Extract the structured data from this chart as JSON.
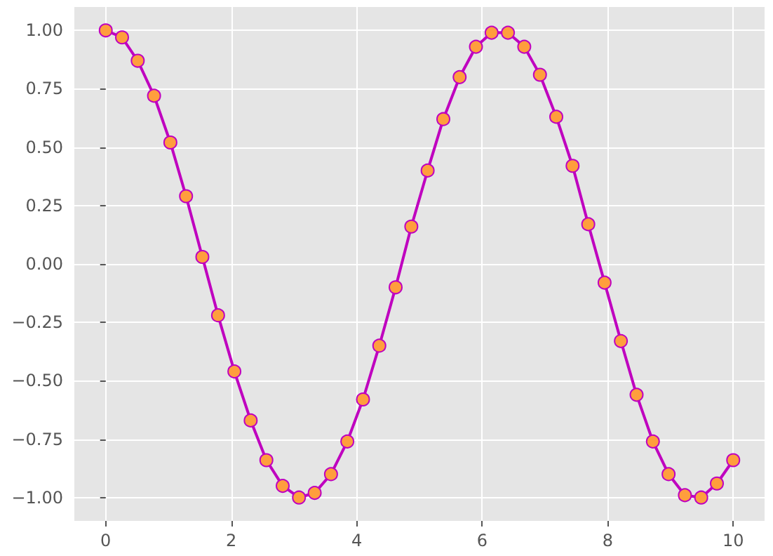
{
  "chart_data": {
    "type": "line",
    "marker": "circle",
    "line_style": "solid",
    "grid": true,
    "x": [
      0,
      0.26,
      0.51,
      0.77,
      1.03,
      1.28,
      1.54,
      1.79,
      2.05,
      2.31,
      2.56,
      2.82,
      3.08,
      3.33,
      3.59,
      3.85,
      4.1,
      4.36,
      4.62,
      4.87,
      5.13,
      5.38,
      5.64,
      5.9,
      6.15,
      6.41,
      6.67,
      6.92,
      7.18,
      7.44,
      7.69,
      7.95,
      8.21,
      8.46,
      8.72,
      8.97,
      9.23,
      9.49,
      9.74,
      10
    ],
    "series": [
      {
        "color": "#bf00bf",
        "values": [
          1.0,
          0.97,
          0.87,
          0.72,
          0.52,
          0.29,
          0.03,
          -0.22,
          -0.46,
          -0.67,
          -0.84,
          -0.95,
          -1.0,
          -0.98,
          -0.9,
          -0.76,
          -0.58,
          -0.35,
          -0.1,
          0.16,
          0.4,
          0.62,
          0.8,
          0.93,
          0.99,
          0.99,
          0.93,
          0.81,
          0.63,
          0.42,
          0.17,
          -0.08,
          -0.33,
          -0.56,
          -0.76,
          -0.9,
          -0.99,
          -1.0,
          -0.94,
          -0.84
        ]
      }
    ],
    "xlim": [
      -0.5,
      10.5
    ],
    "xticks": [
      0,
      2,
      4,
      6,
      8,
      10
    ],
    "ylim": [
      -1.1,
      1.1
    ],
    "yticks": [
      {
        "value": -1,
        "label": "−1.00"
      },
      {
        "value": -0.75,
        "label": "−0.75"
      },
      {
        "value": -0.5,
        "label": "−0.50"
      },
      {
        "value": -0.25,
        "label": "−0.25"
      },
      {
        "value": 0,
        "label": "0.00"
      },
      {
        "value": 0.25,
        "label": "0.25"
      },
      {
        "value": 0.5,
        "label": "0.50"
      },
      {
        "value": 0.75,
        "label": "0.75"
      },
      {
        "value": 1,
        "label": "1.00"
      }
    ]
  }
}
